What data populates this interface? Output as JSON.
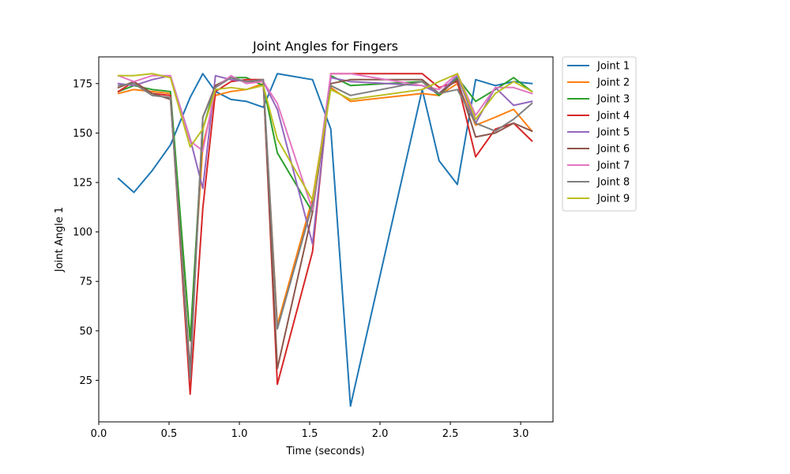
{
  "chart_data": {
    "type": "line",
    "title": "Joint Angles for Fingers",
    "xlabel": "Time (seconds)",
    "ylabel": "Joint Angle 1",
    "xlim": [
      0.0,
      3.23
    ],
    "ylim": [
      4.0,
      188.5
    ],
    "xticks": [
      "0.0",
      "0.5",
      "1.0",
      "1.5",
      "2.0",
      "2.5",
      "3.0"
    ],
    "yticks": [
      "25",
      "50",
      "75",
      "100",
      "125",
      "150",
      "175"
    ],
    "grid": false,
    "legend_position": "outside-right-top",
    "x": [
      0.14,
      0.25,
      0.38,
      0.51,
      0.65,
      0.74,
      0.83,
      0.94,
      1.05,
      1.17,
      1.27,
      1.52,
      1.65,
      1.79,
      2.3,
      2.42,
      2.55,
      2.68,
      2.82,
      2.95,
      3.08
    ],
    "series": [
      {
        "name": "Joint 1",
        "color": "#1f77b4",
        "values": [
          127,
          120,
          131,
          144,
          168,
          180,
          171,
          167,
          166,
          163,
          180,
          177,
          152,
          12,
          172,
          136,
          124,
          177,
          174,
          176,
          175
        ]
      },
      {
        "name": "Joint 2",
        "color": "#ff7f0e",
        "values": [
          170,
          172,
          171,
          170,
          45,
          144,
          169,
          171,
          172,
          175,
          53,
          117,
          173,
          166,
          170,
          169,
          175,
          154,
          158,
          162,
          151
        ]
      },
      {
        "name": "Joint 3",
        "color": "#2ca02c",
        "values": [
          171,
          174,
          172,
          171,
          45,
          152,
          174,
          178,
          178,
          174,
          140,
          110,
          179,
          174,
          176,
          169,
          178,
          166,
          172,
          178,
          171
        ]
      },
      {
        "name": "Joint 4",
        "color": "#d62728",
        "values": [
          171,
          176,
          170,
          169,
          18,
          112,
          171,
          176,
          177,
          177,
          23,
          90,
          180,
          180,
          180,
          173,
          176,
          138,
          152,
          155,
          146
        ]
      },
      {
        "name": "Joint 5",
        "color": "#9467bd",
        "values": [
          175,
          174,
          177,
          179,
          147,
          122,
          179,
          177,
          176,
          176,
          162,
          94,
          178,
          176,
          174,
          170,
          179,
          155,
          173,
          164,
          166
        ]
      },
      {
        "name": "Joint 6",
        "color": "#8c564b",
        "values": [
          173,
          176,
          170,
          167,
          30,
          158,
          174,
          178,
          176,
          176,
          31,
          110,
          175,
          177,
          177,
          170,
          177,
          148,
          150,
          155,
          151
        ]
      },
      {
        "name": "Joint 7",
        "color": "#e377c2",
        "values": [
          179,
          176,
          179,
          179,
          146,
          141,
          173,
          179,
          175,
          176,
          165,
          111,
          180,
          180,
          174,
          172,
          180,
          159,
          173,
          173,
          170
        ]
      },
      {
        "name": "Joint 8",
        "color": "#7f7f7f",
        "values": [
          174,
          175,
          169,
          168,
          26,
          158,
          173,
          178,
          176,
          177,
          51,
          114,
          174,
          169,
          176,
          170,
          172,
          155,
          151,
          157,
          165
        ]
      },
      {
        "name": "Joint 9",
        "color": "#bcbd22",
        "values": [
          179,
          179,
          180,
          178,
          143,
          152,
          172,
          173,
          172,
          174,
          147,
          116,
          172,
          167,
          172,
          176,
          180,
          157,
          170,
          176,
          171
        ]
      }
    ]
  }
}
